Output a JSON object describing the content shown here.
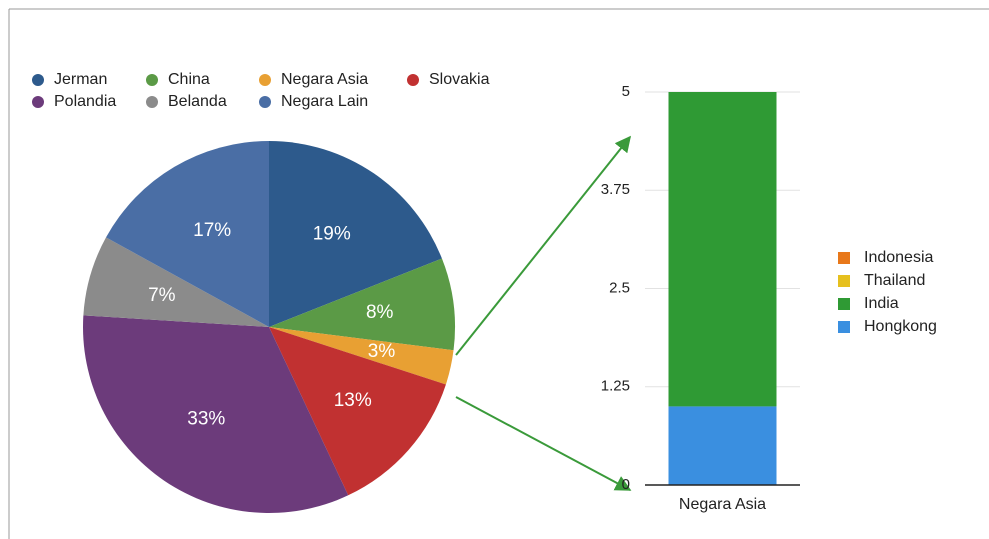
{
  "chart_data": [
    {
      "type": "pie",
      "categories": [
        "Jerman",
        "China",
        "Negara Asia",
        "Slovakia",
        "Polandia",
        "Belanda",
        "Negara Lain"
      ],
      "values": [
        19,
        8,
        3,
        13,
        33,
        7,
        17
      ],
      "value_labels": [
        "19%",
        "8%",
        "3%",
        "13%",
        "33%",
        "7%",
        "17%"
      ],
      "colors": [
        "#2d5a8c",
        "#5b9a46",
        "#e8a033",
        "#c13131",
        "#6c3b7b",
        "#8b8b8b",
        "#4a6ea5"
      ],
      "legend": "top"
    },
    {
      "type": "stacked_bar",
      "categories": [
        "Negara Asia"
      ],
      "series": [
        {
          "name": "Indonesia",
          "color": "#e8781a",
          "values": [
            0
          ]
        },
        {
          "name": "Thailand",
          "color": "#e6c01e",
          "values": [
            0
          ]
        },
        {
          "name": "India",
          "color": "#2f9a34",
          "values": [
            4
          ]
        },
        {
          "name": "Hongkong",
          "color": "#3a8fe0",
          "values": [
            1
          ]
        }
      ],
      "ylim": [
        0,
        5
      ],
      "yticks": [
        0,
        1.25,
        2.5,
        3.75,
        5
      ],
      "grid": true,
      "legend": "right"
    }
  ]
}
